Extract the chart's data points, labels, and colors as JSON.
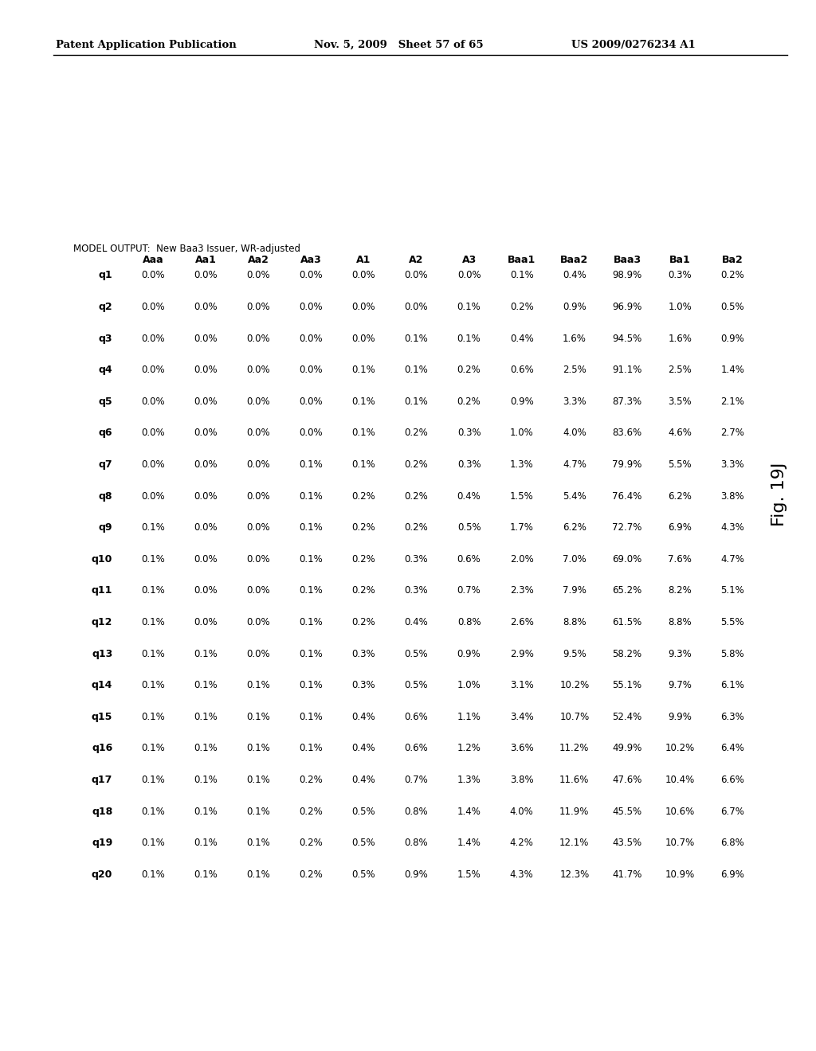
{
  "header_left": "Patent Application Publication",
  "header_mid": "Nov. 5, 2009   Sheet 57 of 65",
  "header_right": "US 2009/0276234 A1",
  "model_output_label": "MODEL OUTPUT:  New Baa3 Issuer, WR-adjusted",
  "fig_label": "Fig. 19J",
  "columns": [
    "Aaa",
    "Aa1",
    "Aa2",
    "Aa3",
    "A1",
    "A2",
    "A3",
    "Baa1",
    "Baa2",
    "Baa3",
    "Ba1",
    "Ba2"
  ],
  "rows": [
    "q1",
    "q2",
    "q3",
    "q4",
    "q5",
    "q6",
    "q7",
    "q8",
    "q9",
    "q10",
    "q11",
    "q12",
    "q13",
    "q14",
    "q15",
    "q16",
    "q17",
    "q18",
    "q19",
    "q20"
  ],
  "data": [
    [
      "0.0%",
      "0.0%",
      "0.0%",
      "0.0%",
      "0.0%",
      "0.0%",
      "0.0%",
      "0.1%",
      "0.4%",
      "98.9%",
      "0.3%",
      "0.2%"
    ],
    [
      "0.0%",
      "0.0%",
      "0.0%",
      "0.0%",
      "0.0%",
      "0.0%",
      "0.1%",
      "0.2%",
      "0.9%",
      "96.9%",
      "1.0%",
      "0.5%"
    ],
    [
      "0.0%",
      "0.0%",
      "0.0%",
      "0.0%",
      "0.0%",
      "0.1%",
      "0.1%",
      "0.4%",
      "1.6%",
      "94.5%",
      "1.6%",
      "0.9%"
    ],
    [
      "0.0%",
      "0.0%",
      "0.0%",
      "0.0%",
      "0.1%",
      "0.1%",
      "0.2%",
      "0.6%",
      "2.5%",
      "91.1%",
      "2.5%",
      "1.4%"
    ],
    [
      "0.0%",
      "0.0%",
      "0.0%",
      "0.0%",
      "0.1%",
      "0.1%",
      "0.2%",
      "0.9%",
      "3.3%",
      "87.3%",
      "3.5%",
      "2.1%"
    ],
    [
      "0.0%",
      "0.0%",
      "0.0%",
      "0.0%",
      "0.1%",
      "0.2%",
      "0.3%",
      "1.0%",
      "4.0%",
      "83.6%",
      "4.6%",
      "2.7%"
    ],
    [
      "0.0%",
      "0.0%",
      "0.0%",
      "0.1%",
      "0.1%",
      "0.2%",
      "0.3%",
      "1.3%",
      "4.7%",
      "79.9%",
      "5.5%",
      "3.3%"
    ],
    [
      "0.0%",
      "0.0%",
      "0.0%",
      "0.1%",
      "0.2%",
      "0.2%",
      "0.4%",
      "1.5%",
      "5.4%",
      "76.4%",
      "6.2%",
      "3.8%"
    ],
    [
      "0.1%",
      "0.0%",
      "0.0%",
      "0.1%",
      "0.2%",
      "0.2%",
      "0.5%",
      "1.7%",
      "6.2%",
      "72.7%",
      "6.9%",
      "4.3%"
    ],
    [
      "0.1%",
      "0.0%",
      "0.0%",
      "0.1%",
      "0.2%",
      "0.3%",
      "0.6%",
      "2.0%",
      "7.0%",
      "69.0%",
      "7.6%",
      "4.7%"
    ],
    [
      "0.1%",
      "0.0%",
      "0.0%",
      "0.1%",
      "0.2%",
      "0.3%",
      "0.7%",
      "2.3%",
      "7.9%",
      "65.2%",
      "8.2%",
      "5.1%"
    ],
    [
      "0.1%",
      "0.0%",
      "0.0%",
      "0.1%",
      "0.2%",
      "0.4%",
      "0.8%",
      "2.6%",
      "8.8%",
      "61.5%",
      "8.8%",
      "5.5%"
    ],
    [
      "0.1%",
      "0.1%",
      "0.0%",
      "0.1%",
      "0.3%",
      "0.5%",
      "0.9%",
      "2.9%",
      "9.5%",
      "58.2%",
      "9.3%",
      "5.8%"
    ],
    [
      "0.1%",
      "0.1%",
      "0.1%",
      "0.1%",
      "0.3%",
      "0.5%",
      "1.0%",
      "3.1%",
      "10.2%",
      "55.1%",
      "9.7%",
      "6.1%"
    ],
    [
      "0.1%",
      "0.1%",
      "0.1%",
      "0.1%",
      "0.4%",
      "0.6%",
      "1.1%",
      "3.4%",
      "10.7%",
      "52.4%",
      "9.9%",
      "6.3%"
    ],
    [
      "0.1%",
      "0.1%",
      "0.1%",
      "0.1%",
      "0.4%",
      "0.6%",
      "1.2%",
      "3.6%",
      "11.2%",
      "49.9%",
      "10.2%",
      "6.4%"
    ],
    [
      "0.1%",
      "0.1%",
      "0.1%",
      "0.2%",
      "0.4%",
      "0.7%",
      "1.3%",
      "3.8%",
      "11.6%",
      "47.6%",
      "10.4%",
      "6.6%"
    ],
    [
      "0.1%",
      "0.1%",
      "0.1%",
      "0.2%",
      "0.5%",
      "0.8%",
      "1.4%",
      "4.0%",
      "11.9%",
      "45.5%",
      "10.6%",
      "6.7%"
    ],
    [
      "0.1%",
      "0.1%",
      "0.1%",
      "0.2%",
      "0.5%",
      "0.8%",
      "1.4%",
      "4.2%",
      "12.1%",
      "43.5%",
      "10.7%",
      "6.8%"
    ],
    [
      "0.1%",
      "0.1%",
      "0.1%",
      "0.2%",
      "0.5%",
      "0.9%",
      "1.5%",
      "4.3%",
      "12.3%",
      "41.7%",
      "10.9%",
      "6.9%"
    ]
  ],
  "bg_color": "#ffffff",
  "text_color": "#000000"
}
